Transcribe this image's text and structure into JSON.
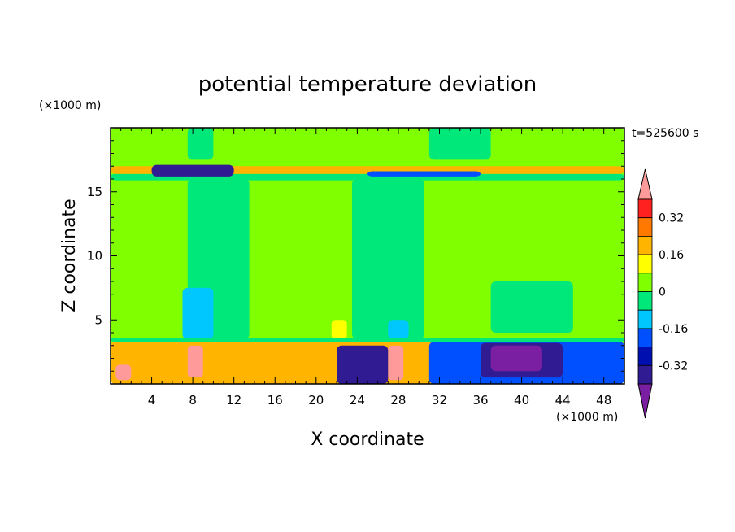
{
  "chart_data": {
    "type": "heatmap",
    "title": "potential temperature deviation",
    "xlabel": "X coordinate",
    "ylabel": "Z coordinate",
    "x_unit": "(×1000 m)",
    "y_unit": "(×1000 m)",
    "time_label": "t=525600 s",
    "xlim": [
      0,
      50
    ],
    "ylim": [
      0,
      20
    ],
    "x_ticks": [
      "4",
      "8",
      "12",
      "16",
      "20",
      "24",
      "28",
      "32",
      "36",
      "40",
      "44",
      "48"
    ],
    "y_ticks": [
      "5",
      "10",
      "15"
    ],
    "colorbar": {
      "levels": [
        -0.48,
        -0.4,
        -0.32,
        -0.24,
        -0.16,
        -0.08,
        0,
        0.08,
        0.16,
        0.24,
        0.32,
        0.4
      ],
      "tick_labels": [
        "0.32",
        "0.16",
        "0",
        "-0.16",
        "-0.32"
      ],
      "tick_values": [
        0.32,
        0.16,
        0,
        -0.16,
        -0.32
      ],
      "colors": [
        "#7B1FA2",
        "#311B92",
        "#0010B0",
        "#0050FF",
        "#00C8FF",
        "#00E87A",
        "#80FF00",
        "#FFFF00",
        "#FFB400",
        "#FF7800",
        "#FF2020",
        "#FF9A9A"
      ]
    },
    "regions": [
      {
        "value": 0.04,
        "x": [
          0,
          50
        ],
        "z": [
          0,
          20
        ]
      },
      {
        "value": -0.04,
        "x": [
          7.5,
          13.5
        ],
        "z": [
          3.5,
          16
        ]
      },
      {
        "value": -0.04,
        "x": [
          23.5,
          30.5
        ],
        "z": [
          3.5,
          16
        ]
      },
      {
        "value": -0.04,
        "x": [
          37,
          45
        ],
        "z": [
          4,
          8
        ]
      },
      {
        "value": -0.04,
        "x": [
          7.5,
          10
        ],
        "z": [
          17.5,
          20
        ]
      },
      {
        "value": -0.04,
        "x": [
          31,
          37
        ],
        "z": [
          17.5,
          20
        ]
      },
      {
        "value": -0.12,
        "x": [
          7,
          10
        ],
        "z": [
          3.5,
          7.5
        ]
      },
      {
        "value": 0.12,
        "x": [
          21.5,
          23
        ],
        "z": [
          3.5,
          5
        ]
      },
      {
        "value": -0.12,
        "x": [
          27,
          29
        ],
        "z": [
          3.5,
          5
        ]
      },
      {
        "value": -0.04,
        "x": [
          0,
          50
        ],
        "z": [
          15.9,
          16.4
        ]
      },
      {
        "value": 0.2,
        "x": [
          0,
          50
        ],
        "z": [
          16.4,
          17
        ]
      },
      {
        "value": -0.36,
        "x": [
          4,
          12
        ],
        "z": [
          16.2,
          17.1
        ]
      },
      {
        "value": -0.2,
        "x": [
          25,
          36
        ],
        "z": [
          16.2,
          16.6
        ]
      },
      {
        "value": -0.04,
        "x": [
          0,
          50
        ],
        "z": [
          3.3,
          3.6
        ]
      },
      {
        "value": 0.2,
        "x": [
          0,
          50
        ],
        "z": [
          0,
          3.3
        ]
      },
      {
        "value": -0.2,
        "x": [
          31,
          50
        ],
        "z": [
          0,
          3.3
        ]
      },
      {
        "value": -0.36,
        "x": [
          36,
          44
        ],
        "z": [
          0.5,
          3.2
        ]
      },
      {
        "value": -0.44,
        "x": [
          37,
          42
        ],
        "z": [
          1,
          3
        ]
      },
      {
        "value": 0.44,
        "x": [
          0.5,
          2
        ],
        "z": [
          0.3,
          1.5
        ]
      },
      {
        "value": 0.44,
        "x": [
          7.5,
          9
        ],
        "z": [
          0.5,
          3
        ]
      },
      {
        "value": 0.44,
        "x": [
          27,
          28.5
        ],
        "z": [
          0.3,
          3
        ]
      },
      {
        "value": -0.36,
        "x": [
          22,
          27
        ],
        "z": [
          0,
          3
        ]
      }
    ]
  }
}
